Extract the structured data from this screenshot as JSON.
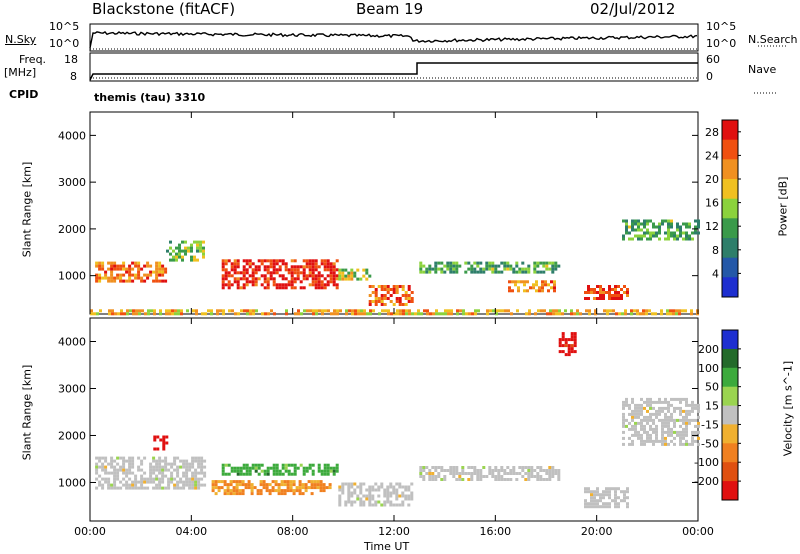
{
  "header": {
    "radar": "Blackstone (fitACF)",
    "beam": "Beam 19",
    "date": "02/Jul/2012"
  },
  "top_panel": {
    "left_label_top": "N.Sky",
    "left_ticks": [
      "10^5",
      "10^0"
    ],
    "right_ticks": [
      "10^5",
      "10^0"
    ],
    "right_label": "N.Search"
  },
  "freq_panel": {
    "label_line1": "Freq.",
    "label_line2": "[MHz]",
    "left_ticks": [
      "18",
      "8"
    ],
    "right_ticks": [
      "60",
      "0"
    ],
    "right_label": "Nave",
    "cpid_label": "CPID",
    "cpid_text": "themis (tau) 3310"
  },
  "colors": {
    "power_scale": [
      "#1e2fd0",
      "#2458a8",
      "#2e7e6a",
      "#3a9a4a",
      "#8bd23c",
      "#f0c020",
      "#f09020",
      "#f05010",
      "#e01010"
    ],
    "velocity_scale": [
      "#1e2fd0",
      "#236a2a",
      "#3caa3c",
      "#9ad450",
      "#c0c0c0",
      "#f0b030",
      "#f08020",
      "#e05010",
      "#e01010"
    ]
  },
  "chart_data": [
    {
      "type": "heatmap",
      "title": "Power",
      "xlabel": "",
      "ylabel": "Slant Range [km]",
      "x_ticks": [
        "00:00",
        "04:00",
        "08:00",
        "12:00",
        "16:00",
        "20:00",
        "00:00"
      ],
      "xlim_hours": [
        0,
        24
      ],
      "ylim": [
        180,
        4500
      ],
      "y_ticks": [
        1000,
        2000,
        3000,
        4000
      ],
      "colorbar": {
        "label": "Power [dB]",
        "ticks": [
          4,
          8,
          12,
          16,
          20,
          24,
          28
        ],
        "range": [
          0,
          30
        ]
      },
      "regions": [
        {
          "t0": 0.2,
          "t1": 3.0,
          "r0": 900,
          "r1": 1300,
          "value": 24
        },
        {
          "t0": 3.0,
          "t1": 4.5,
          "r0": 1350,
          "r1": 1750,
          "value": 14
        },
        {
          "t0": 5.2,
          "t1": 9.8,
          "r0": 750,
          "r1": 1350,
          "value": 28
        },
        {
          "t0": 9.8,
          "t1": 11.0,
          "r0": 950,
          "r1": 1150,
          "value": 16
        },
        {
          "t0": 11.0,
          "t1": 12.7,
          "r0": 400,
          "r1": 800,
          "value": 24
        },
        {
          "t0": 13.0,
          "t1": 18.5,
          "r0": 1100,
          "r1": 1300,
          "value": 12
        },
        {
          "t0": 16.5,
          "t1": 18.3,
          "r0": 700,
          "r1": 900,
          "value": 22
        },
        {
          "t0": 19.5,
          "t1": 21.2,
          "r0": 500,
          "r1": 800,
          "value": 26
        },
        {
          "t0": 21.0,
          "t1": 24.0,
          "r0": 1800,
          "r1": 2200,
          "value": 12
        },
        {
          "t0": 0.0,
          "t1": 24.0,
          "r0": 180,
          "r1": 280,
          "value": 20
        }
      ]
    },
    {
      "type": "heatmap",
      "title": "Velocity",
      "xlabel": "Time UT",
      "ylabel": "Slant Range [km]",
      "x_ticks": [
        "00:00",
        "04:00",
        "08:00",
        "12:00",
        "16:00",
        "20:00",
        "00:00"
      ],
      "xlim_hours": [
        0,
        24
      ],
      "ylim": [
        180,
        4500
      ],
      "y_ticks": [
        1000,
        2000,
        3000,
        4000
      ],
      "colorbar": {
        "label": "Velocity [m s^-1]",
        "ticks": [
          200,
          100,
          50,
          15,
          -15,
          -50,
          -100,
          -200
        ],
        "range": [
          -250,
          250
        ]
      },
      "regions": [
        {
          "t0": 0.2,
          "t1": 4.5,
          "r0": 900,
          "r1": 1550,
          "value": 0
        },
        {
          "t0": 2.5,
          "t1": 3.0,
          "r0": 1700,
          "r1": 2000,
          "value": -220
        },
        {
          "t0": 5.2,
          "t1": 9.8,
          "r0": 1150,
          "r1": 1400,
          "value": 110
        },
        {
          "t0": 4.8,
          "t1": 9.5,
          "r0": 750,
          "r1": 1050,
          "value": -90
        },
        {
          "t0": 9.8,
          "t1": 12.7,
          "r0": 500,
          "r1": 1000,
          "value": 0
        },
        {
          "t0": 13.0,
          "t1": 18.5,
          "r0": 1050,
          "r1": 1350,
          "value": 0
        },
        {
          "t0": 19.5,
          "t1": 21.2,
          "r0": 500,
          "r1": 900,
          "value": 0
        },
        {
          "t0": 21.0,
          "t1": 24.0,
          "r0": 1800,
          "r1": 2800,
          "value": 0
        },
        {
          "t0": 18.5,
          "t1": 19.2,
          "r0": 3700,
          "r1": 4200,
          "value": -220
        }
      ]
    }
  ]
}
